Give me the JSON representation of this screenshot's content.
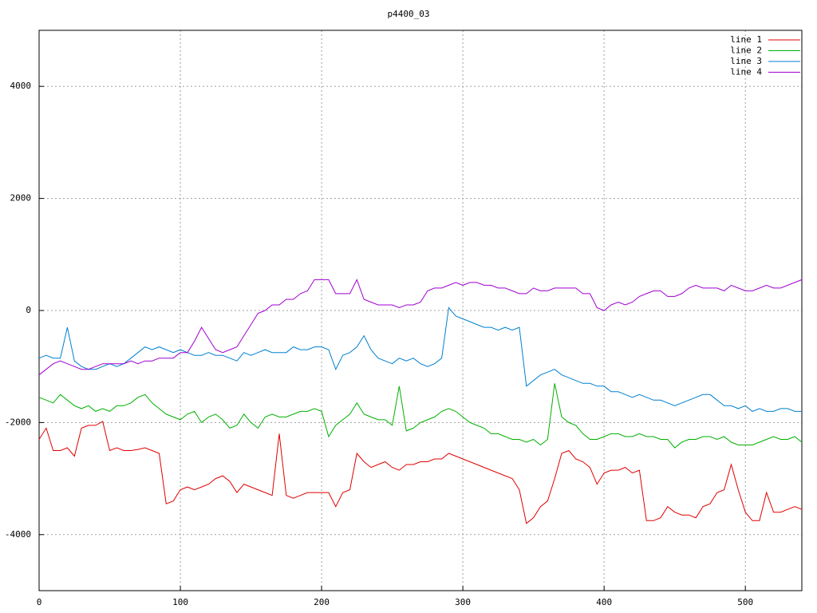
{
  "chart_data": {
    "type": "line",
    "title": "p4400_03",
    "x": [
      0,
      5,
      10,
      15,
      20,
      25,
      30,
      35,
      40,
      45,
      50,
      55,
      60,
      65,
      70,
      75,
      80,
      85,
      90,
      95,
      100,
      105,
      110,
      115,
      120,
      125,
      130,
      135,
      140,
      145,
      150,
      155,
      160,
      165,
      170,
      175,
      180,
      185,
      190,
      195,
      200,
      205,
      210,
      215,
      220,
      225,
      230,
      235,
      240,
      245,
      250,
      255,
      260,
      265,
      270,
      275,
      280,
      285,
      290,
      295,
      300,
      305,
      310,
      315,
      320,
      325,
      330,
      335,
      340,
      345,
      350,
      355,
      360,
      365,
      370,
      375,
      380,
      385,
      390,
      395,
      400,
      405,
      410,
      415,
      420,
      425,
      430,
      435,
      440,
      445,
      450,
      455,
      460,
      465,
      470,
      475,
      480,
      485,
      490,
      495,
      500,
      505,
      510,
      515,
      520,
      525,
      530,
      535,
      540
    ],
    "series": [
      {
        "name": "line 1",
        "color": "#e00000",
        "values": [
          -2300,
          -2100,
          -2500,
          -2500,
          -2450,
          -2600,
          -2100,
          -2050,
          -2050,
          -1980,
          -2500,
          -2450,
          -2500,
          -2500,
          -2480,
          -2450,
          -2500,
          -2550,
          -3450,
          -3400,
          -3200,
          -3150,
          -3200,
          -3150,
          -3100,
          -3000,
          -2950,
          -3050,
          -3250,
          -3100,
          -3150,
          -3200,
          -3250,
          -3300,
          -2200,
          -3300,
          -3350,
          -3300,
          -3250,
          -3250,
          -3250,
          -3250,
          -3500,
          -3250,
          -3200,
          -2550,
          -2700,
          -2800,
          -2750,
          -2700,
          -2800,
          -2850,
          -2750,
          -2750,
          -2700,
          -2700,
          -2650,
          -2650,
          -2550,
          -2600,
          -2650,
          -2700,
          -2750,
          -2800,
          -2850,
          -2900,
          -2950,
          -3000,
          -3200,
          -3800,
          -3700,
          -3500,
          -3400,
          -3000,
          -2550,
          -2500,
          -2650,
          -2700,
          -2800,
          -3100,
          -2900,
          -2850,
          -2850,
          -2800,
          -2900,
          -2850,
          -3750,
          -3750,
          -3700,
          -3500,
          -3600,
          -3650,
          -3650,
          -3700,
          -3500,
          -3450,
          -3250,
          -3200,
          -2750,
          -3200,
          -3600,
          -3750,
          -3750,
          -3250,
          -3600,
          -3600,
          -3550,
          -3500,
          -3550
        ]
      },
      {
        "name": "line 2",
        "color": "#00b000",
        "values": [
          -1550,
          -1600,
          -1650,
          -1500,
          -1600,
          -1700,
          -1750,
          -1700,
          -1800,
          -1750,
          -1800,
          -1700,
          -1700,
          -1650,
          -1550,
          -1500,
          -1650,
          -1750,
          -1850,
          -1900,
          -1950,
          -1850,
          -1800,
          -2000,
          -1900,
          -1850,
          -1950,
          -2100,
          -2050,
          -1850,
          -2000,
          -2100,
          -1900,
          -1850,
          -1900,
          -1900,
          -1850,
          -1800,
          -1800,
          -1750,
          -1800,
          -2250,
          -2050,
          -1950,
          -1850,
          -1650,
          -1850,
          -1900,
          -1950,
          -1950,
          -2050,
          -1350,
          -2150,
          -2100,
          -2000,
          -1950,
          -1900,
          -1800,
          -1750,
          -1800,
          -1900,
          -2000,
          -2050,
          -2100,
          -2200,
          -2200,
          -2250,
          -2300,
          -2300,
          -2350,
          -2300,
          -2400,
          -2300,
          -1300,
          -1900,
          -2000,
          -2050,
          -2200,
          -2300,
          -2300,
          -2250,
          -2200,
          -2200,
          -2250,
          -2250,
          -2200,
          -2250,
          -2250,
          -2300,
          -2300,
          -2450,
          -2350,
          -2300,
          -2300,
          -2250,
          -2250,
          -2300,
          -2250,
          -2350,
          -2400,
          -2400,
          -2400,
          -2350,
          -2300,
          -2250,
          -2300,
          -2300,
          -2250,
          -2350
        ]
      },
      {
        "name": "line 3",
        "color": "#0080d0",
        "values": [
          -850,
          -800,
          -850,
          -850,
          -300,
          -900,
          -1000,
          -1050,
          -1050,
          -1000,
          -950,
          -1000,
          -950,
          -850,
          -750,
          -650,
          -700,
          -650,
          -700,
          -750,
          -700,
          -750,
          -800,
          -800,
          -750,
          -800,
          -800,
          -850,
          -900,
          -750,
          -800,
          -750,
          -700,
          -750,
          -750,
          -750,
          -650,
          -700,
          -700,
          -650,
          -650,
          -700,
          -1050,
          -800,
          -750,
          -650,
          -450,
          -700,
          -850,
          -900,
          -950,
          -850,
          -900,
          -850,
          -950,
          -1000,
          -950,
          -850,
          50,
          -100,
          -150,
          -200,
          -250,
          -300,
          -300,
          -350,
          -300,
          -350,
          -300,
          -1350,
          -1250,
          -1150,
          -1100,
          -1050,
          -1150,
          -1200,
          -1250,
          -1300,
          -1300,
          -1350,
          -1350,
          -1450,
          -1450,
          -1500,
          -1550,
          -1500,
          -1550,
          -1600,
          -1600,
          -1650,
          -1700,
          -1650,
          -1600,
          -1550,
          -1500,
          -1500,
          -1600,
          -1700,
          -1700,
          -1750,
          -1700,
          -1800,
          -1750,
          -1800,
          -1800,
          -1750,
          -1750,
          -1800,
          -1800
        ]
      },
      {
        "name": "line 4",
        "color": "#a000d0",
        "values": [
          -1150,
          -1050,
          -950,
          -900,
          -950,
          -1000,
          -1050,
          -1050,
          -1000,
          -950,
          -950,
          -950,
          -950,
          -900,
          -950,
          -900,
          -900,
          -850,
          -850,
          -850,
          -750,
          -750,
          -550,
          -300,
          -500,
          -700,
          -750,
          -700,
          -650,
          -450,
          -250,
          -50,
          0,
          100,
          100,
          200,
          200,
          300,
          350,
          550,
          550,
          550,
          300,
          300,
          300,
          550,
          200,
          150,
          100,
          100,
          100,
          50,
          100,
          100,
          150,
          350,
          400,
          400,
          450,
          500,
          450,
          500,
          500,
          450,
          450,
          400,
          400,
          350,
          300,
          300,
          400,
          350,
          350,
          400,
          400,
          400,
          400,
          300,
          300,
          50,
          0,
          100,
          150,
          100,
          150,
          250,
          300,
          350,
          350,
          250,
          250,
          300,
          400,
          450,
          400,
          400,
          400,
          350,
          450,
          400,
          350,
          350,
          400,
          450,
          400,
          400,
          450,
          500,
          550
        ]
      }
    ],
    "xlim": [
      0,
      540
    ],
    "xticks": [
      0,
      100,
      200,
      300,
      400,
      500
    ],
    "ylim": [
      -5000,
      5000
    ],
    "yticks": [
      -4000,
      -2000,
      0,
      2000,
      4000
    ],
    "grid": true,
    "legend": "top-right"
  }
}
